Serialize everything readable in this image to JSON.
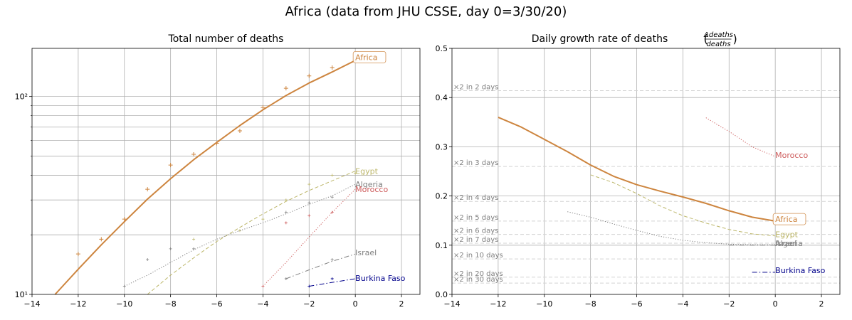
{
  "suptitle": "Africa (data from JHU CSSE, day 0=3/30/20)",
  "colors": {
    "Africa": "#cd853f",
    "Egypt": "#bdb76b",
    "Algeria": "#808080",
    "Morocco": "#cd5c5c",
    "Israel": "#808080",
    "Burkina Faso": "#00008b",
    "grid": "#b0b0b0",
    "doubling": "#d3d3d3",
    "doubling_text": "#808080"
  },
  "chart_data": [
    {
      "type": "line",
      "title": "Total number of deaths",
      "xlabel": "",
      "ylabel": "",
      "yscale": "log",
      "xlim": [
        -14,
        2.8
      ],
      "ylim": [
        10,
        175
      ],
      "xticks": [
        -14,
        -12,
        -10,
        -8,
        -6,
        -4,
        -2,
        0,
        2
      ],
      "xtick_labels": [
        "−14",
        "−12",
        "−10",
        "−8",
        "−6",
        "−4",
        "−2",
        "0",
        "2"
      ],
      "yticks_major": [
        10,
        100
      ],
      "ytick_labels": [
        "10¹",
        "10²"
      ],
      "yticks_minor": [
        20,
        30,
        40,
        50,
        60,
        70,
        80,
        90
      ],
      "grid": true,
      "series": [
        {
          "name": "Africa",
          "style": "solid",
          "width": 2,
          "x": [
            -13,
            -12,
            -11,
            -10,
            -9,
            -8,
            -7,
            -6,
            -5,
            -4,
            -3,
            -2,
            -1,
            0
          ],
          "y": [
            10,
            13.4,
            17.8,
            23.3,
            30.3,
            38.4,
            47.9,
            58.6,
            71.3,
            85.6,
            101,
            117,
            133,
            152
          ],
          "points_x": [
            -12,
            -11,
            -10,
            -9,
            -8,
            -7,
            -6,
            -5,
            -4,
            -3,
            -2,
            -1,
            0
          ],
          "points_y": [
            16,
            19,
            24,
            34,
            45,
            51,
            58,
            67,
            88,
            110,
            127,
            140,
            152
          ]
        },
        {
          "name": "Egypt",
          "style": "dashed",
          "width": 1,
          "x": [
            -9,
            -8,
            -7,
            -6,
            -5,
            -4,
            -3,
            -2,
            -1,
            0
          ],
          "y": [
            10,
            12.5,
            15.3,
            18.5,
            21.8,
            25.5,
            29.5,
            33.5,
            37.5,
            42
          ],
          "points_x": [
            -7,
            -5,
            -4,
            -3,
            -2,
            -1,
            0
          ],
          "points_y": [
            19,
            21,
            24,
            30,
            36,
            40,
            41
          ]
        },
        {
          "name": "Algeria",
          "style": "dotted",
          "width": 1,
          "x": [
            -10,
            -9,
            -8,
            -7,
            -6,
            -5,
            -4,
            -3,
            -2,
            -1,
            0
          ],
          "y": [
            11,
            12.5,
            14.5,
            16.8,
            19,
            21,
            23,
            25.5,
            28.5,
            31.5,
            36
          ],
          "points_x": [
            -10,
            -9,
            -8,
            -7,
            -3,
            -2,
            -1
          ],
          "points_y": [
            11,
            15,
            17,
            17,
            26,
            29,
            31
          ]
        },
        {
          "name": "Morocco",
          "style": "dotted",
          "width": 1,
          "x": [
            -4,
            -3,
            -2,
            -1,
            0
          ],
          "y": [
            11,
            14.5,
            19.5,
            26,
            34
          ],
          "points_x": [
            -4,
            -3,
            -2,
            -1
          ],
          "points_y": [
            11,
            23,
            25,
            26
          ]
        },
        {
          "name": "Israel",
          "style": "dashdot",
          "width": 1,
          "x": [
            -3,
            -2,
            -1,
            0
          ],
          "y": [
            12,
            13.3,
            14.7,
            16
          ],
          "points_x": [
            -3,
            -1
          ],
          "points_y": [
            12,
            15
          ]
        },
        {
          "name": "Burkina Faso",
          "style": "dashdot",
          "width": 1,
          "x": [
            -2,
            -1,
            0
          ],
          "y": [
            11,
            11.5,
            12
          ],
          "points_x": [
            -2,
            -1
          ],
          "points_y": [
            11,
            12
          ]
        }
      ],
      "annotations": [
        {
          "text": "Africa",
          "series": "Africa",
          "x": 0,
          "y": 158,
          "boxed": true
        },
        {
          "text": "Egypt",
          "series": "Egypt",
          "x": 0,
          "y": 42,
          "boxed": false
        },
        {
          "text": "Algeria",
          "series": "Algeria",
          "x": 0,
          "y": 36,
          "boxed": false
        },
        {
          "text": "Morocco",
          "series": "Morocco",
          "x": 0,
          "y": 34,
          "boxed": false
        },
        {
          "text": "Israel",
          "series": "Israel",
          "x": 0,
          "y": 16.3,
          "boxed": false
        },
        {
          "text": "Burkina Faso",
          "series": "Burkina Faso",
          "x": 0,
          "y": 12.1,
          "boxed": false
        }
      ]
    },
    {
      "type": "line",
      "title": "Daily growth rate of deaths",
      "title_fraction": {
        "numerator": "Δdeaths",
        "denominator": "deaths"
      },
      "xlabel": "",
      "ylabel": "",
      "xlim": [
        -14,
        2.8
      ],
      "ylim": [
        0,
        0.5
      ],
      "xticks": [
        -14,
        -12,
        -10,
        -8,
        -6,
        -4,
        -2,
        0,
        2
      ],
      "xtick_labels": [
        "−14",
        "−12",
        "−10",
        "−8",
        "−6",
        "−4",
        "−2",
        "0",
        "2"
      ],
      "yticks": [
        0.0,
        0.1,
        0.2,
        0.3,
        0.4,
        0.5
      ],
      "ytick_labels": [
        "0.0",
        "0.1",
        "0.2",
        "0.3",
        "0.4",
        "0.5"
      ],
      "grid": true,
      "doubling_lines": [
        {
          "label": "×2 in 2 days",
          "y": 0.414
        },
        {
          "label": "×2 in 3 days",
          "y": 0.26
        },
        {
          "label": "×2 in 4 days",
          "y": 0.189
        },
        {
          "label": "×2 in 5 days",
          "y": 0.149
        },
        {
          "label": "×2 in 6 days",
          "y": 0.122
        },
        {
          "label": "×2 in 7 days",
          "y": 0.104
        },
        {
          "label": "×2 in 10 days",
          "y": 0.072
        },
        {
          "label": "×2 in 20 days",
          "y": 0.035
        },
        {
          "label": "×2 in 30 days",
          "y": 0.023
        }
      ],
      "series": [
        {
          "name": "Africa",
          "style": "solid",
          "width": 2,
          "x": [
            -12,
            -11,
            -10,
            -9,
            -8,
            -7,
            -6,
            -5,
            -4,
            -3,
            -2,
            -1,
            0
          ],
          "y": [
            0.36,
            0.34,
            0.315,
            0.29,
            0.263,
            0.24,
            0.223,
            0.21,
            0.198,
            0.185,
            0.17,
            0.157,
            0.149
          ]
        },
        {
          "name": "Egypt",
          "style": "dashed",
          "width": 1,
          "x": [
            -8,
            -7,
            -6,
            -5,
            -4,
            -3,
            -2,
            -1,
            0
          ],
          "y": [
            0.243,
            0.227,
            0.205,
            0.18,
            0.16,
            0.145,
            0.132,
            0.123,
            0.119
          ]
        },
        {
          "name": "Algeria",
          "style": "dotted",
          "width": 1,
          "x": [
            -9,
            -8,
            -7,
            -6,
            -5,
            -4,
            -3,
            -2,
            -1,
            0
          ],
          "y": [
            0.168,
            0.157,
            0.143,
            0.13,
            0.118,
            0.11,
            0.105,
            0.102,
            0.101,
            0.101
          ]
        },
        {
          "name": "Morocco",
          "style": "dotted",
          "width": 1,
          "x": [
            -3,
            -2,
            -1,
            0
          ],
          "y": [
            0.359,
            0.331,
            0.3,
            0.28
          ]
        },
        {
          "name": "Israel",
          "style": "dashdot",
          "width": 1,
          "x": [
            -2,
            -1,
            0
          ],
          "y": [
            0.1,
            0.1,
            0.1
          ]
        },
        {
          "name": "Burkina Faso",
          "style": "dashdot",
          "width": 1,
          "x": [
            -1,
            0
          ],
          "y": [
            0.045,
            0.045
          ]
        }
      ],
      "annotations": [
        {
          "text": "Africa",
          "series": "Africa",
          "x": 0,
          "y": 0.153,
          "boxed": true
        },
        {
          "text": "Morocco",
          "series": "Morocco",
          "x": 0,
          "y": 0.283,
          "boxed": false
        },
        {
          "text": "Egypt",
          "series": "Egypt",
          "x": 0,
          "y": 0.122,
          "boxed": false
        },
        {
          "text": "Algeria",
          "series": "Algeria",
          "x": 0,
          "y": 0.104,
          "boxed": false
        },
        {
          "text": "Israel",
          "series": "Israel",
          "x": 0,
          "y": 0.104,
          "boxed": false
        },
        {
          "text": "Burkina Faso",
          "series": "Burkina Faso",
          "x": 0,
          "y": 0.049,
          "boxed": false
        }
      ]
    }
  ]
}
